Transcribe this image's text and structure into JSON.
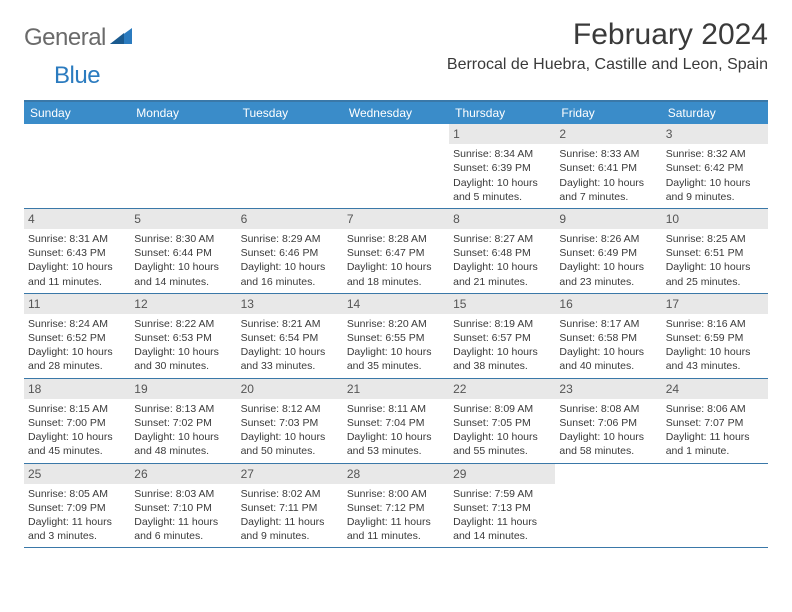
{
  "logo": {
    "part1": "General",
    "part2": "Blue"
  },
  "title": "February 2024",
  "location": "Berrocal de Huebra, Castille and Leon, Spain",
  "colors": {
    "header_bg": "#3a8cc9",
    "border": "#3a78a8",
    "daynum_bg": "#e8e8e8",
    "text": "#3a3a3a",
    "logo_gray": "#6a6a6a",
    "logo_blue": "#2b7bbf"
  },
  "daysOfWeek": [
    "Sunday",
    "Monday",
    "Tuesday",
    "Wednesday",
    "Thursday",
    "Friday",
    "Saturday"
  ],
  "weeks": [
    [
      {
        "empty": true
      },
      {
        "empty": true
      },
      {
        "empty": true
      },
      {
        "empty": true
      },
      {
        "n": "1",
        "sr": "8:34 AM",
        "ss": "6:39 PM",
        "dl": "10 hours and 5 minutes."
      },
      {
        "n": "2",
        "sr": "8:33 AM",
        "ss": "6:41 PM",
        "dl": "10 hours and 7 minutes."
      },
      {
        "n": "3",
        "sr": "8:32 AM",
        "ss": "6:42 PM",
        "dl": "10 hours and 9 minutes."
      }
    ],
    [
      {
        "n": "4",
        "sr": "8:31 AM",
        "ss": "6:43 PM",
        "dl": "10 hours and 11 minutes."
      },
      {
        "n": "5",
        "sr": "8:30 AM",
        "ss": "6:44 PM",
        "dl": "10 hours and 14 minutes."
      },
      {
        "n": "6",
        "sr": "8:29 AM",
        "ss": "6:46 PM",
        "dl": "10 hours and 16 minutes."
      },
      {
        "n": "7",
        "sr": "8:28 AM",
        "ss": "6:47 PM",
        "dl": "10 hours and 18 minutes."
      },
      {
        "n": "8",
        "sr": "8:27 AM",
        "ss": "6:48 PM",
        "dl": "10 hours and 21 minutes."
      },
      {
        "n": "9",
        "sr": "8:26 AM",
        "ss": "6:49 PM",
        "dl": "10 hours and 23 minutes."
      },
      {
        "n": "10",
        "sr": "8:25 AM",
        "ss": "6:51 PM",
        "dl": "10 hours and 25 minutes."
      }
    ],
    [
      {
        "n": "11",
        "sr": "8:24 AM",
        "ss": "6:52 PM",
        "dl": "10 hours and 28 minutes."
      },
      {
        "n": "12",
        "sr": "8:22 AM",
        "ss": "6:53 PM",
        "dl": "10 hours and 30 minutes."
      },
      {
        "n": "13",
        "sr": "8:21 AM",
        "ss": "6:54 PM",
        "dl": "10 hours and 33 minutes."
      },
      {
        "n": "14",
        "sr": "8:20 AM",
        "ss": "6:55 PM",
        "dl": "10 hours and 35 minutes."
      },
      {
        "n": "15",
        "sr": "8:19 AM",
        "ss": "6:57 PM",
        "dl": "10 hours and 38 minutes."
      },
      {
        "n": "16",
        "sr": "8:17 AM",
        "ss": "6:58 PM",
        "dl": "10 hours and 40 minutes."
      },
      {
        "n": "17",
        "sr": "8:16 AM",
        "ss": "6:59 PM",
        "dl": "10 hours and 43 minutes."
      }
    ],
    [
      {
        "n": "18",
        "sr": "8:15 AM",
        "ss": "7:00 PM",
        "dl": "10 hours and 45 minutes."
      },
      {
        "n": "19",
        "sr": "8:13 AM",
        "ss": "7:02 PM",
        "dl": "10 hours and 48 minutes."
      },
      {
        "n": "20",
        "sr": "8:12 AM",
        "ss": "7:03 PM",
        "dl": "10 hours and 50 minutes."
      },
      {
        "n": "21",
        "sr": "8:11 AM",
        "ss": "7:04 PM",
        "dl": "10 hours and 53 minutes."
      },
      {
        "n": "22",
        "sr": "8:09 AM",
        "ss": "7:05 PM",
        "dl": "10 hours and 55 minutes."
      },
      {
        "n": "23",
        "sr": "8:08 AM",
        "ss": "7:06 PM",
        "dl": "10 hours and 58 minutes."
      },
      {
        "n": "24",
        "sr": "8:06 AM",
        "ss": "7:07 PM",
        "dl": "11 hours and 1 minute."
      }
    ],
    [
      {
        "n": "25",
        "sr": "8:05 AM",
        "ss": "7:09 PM",
        "dl": "11 hours and 3 minutes."
      },
      {
        "n": "26",
        "sr": "8:03 AM",
        "ss": "7:10 PM",
        "dl": "11 hours and 6 minutes."
      },
      {
        "n": "27",
        "sr": "8:02 AM",
        "ss": "7:11 PM",
        "dl": "11 hours and 9 minutes."
      },
      {
        "n": "28",
        "sr": "8:00 AM",
        "ss": "7:12 PM",
        "dl": "11 hours and 11 minutes."
      },
      {
        "n": "29",
        "sr": "7:59 AM",
        "ss": "7:13 PM",
        "dl": "11 hours and 14 minutes."
      },
      {
        "empty": true
      },
      {
        "empty": true
      }
    ]
  ],
  "labels": {
    "sunrise": "Sunrise: ",
    "sunset": "Sunset: ",
    "daylight": "Daylight: "
  }
}
